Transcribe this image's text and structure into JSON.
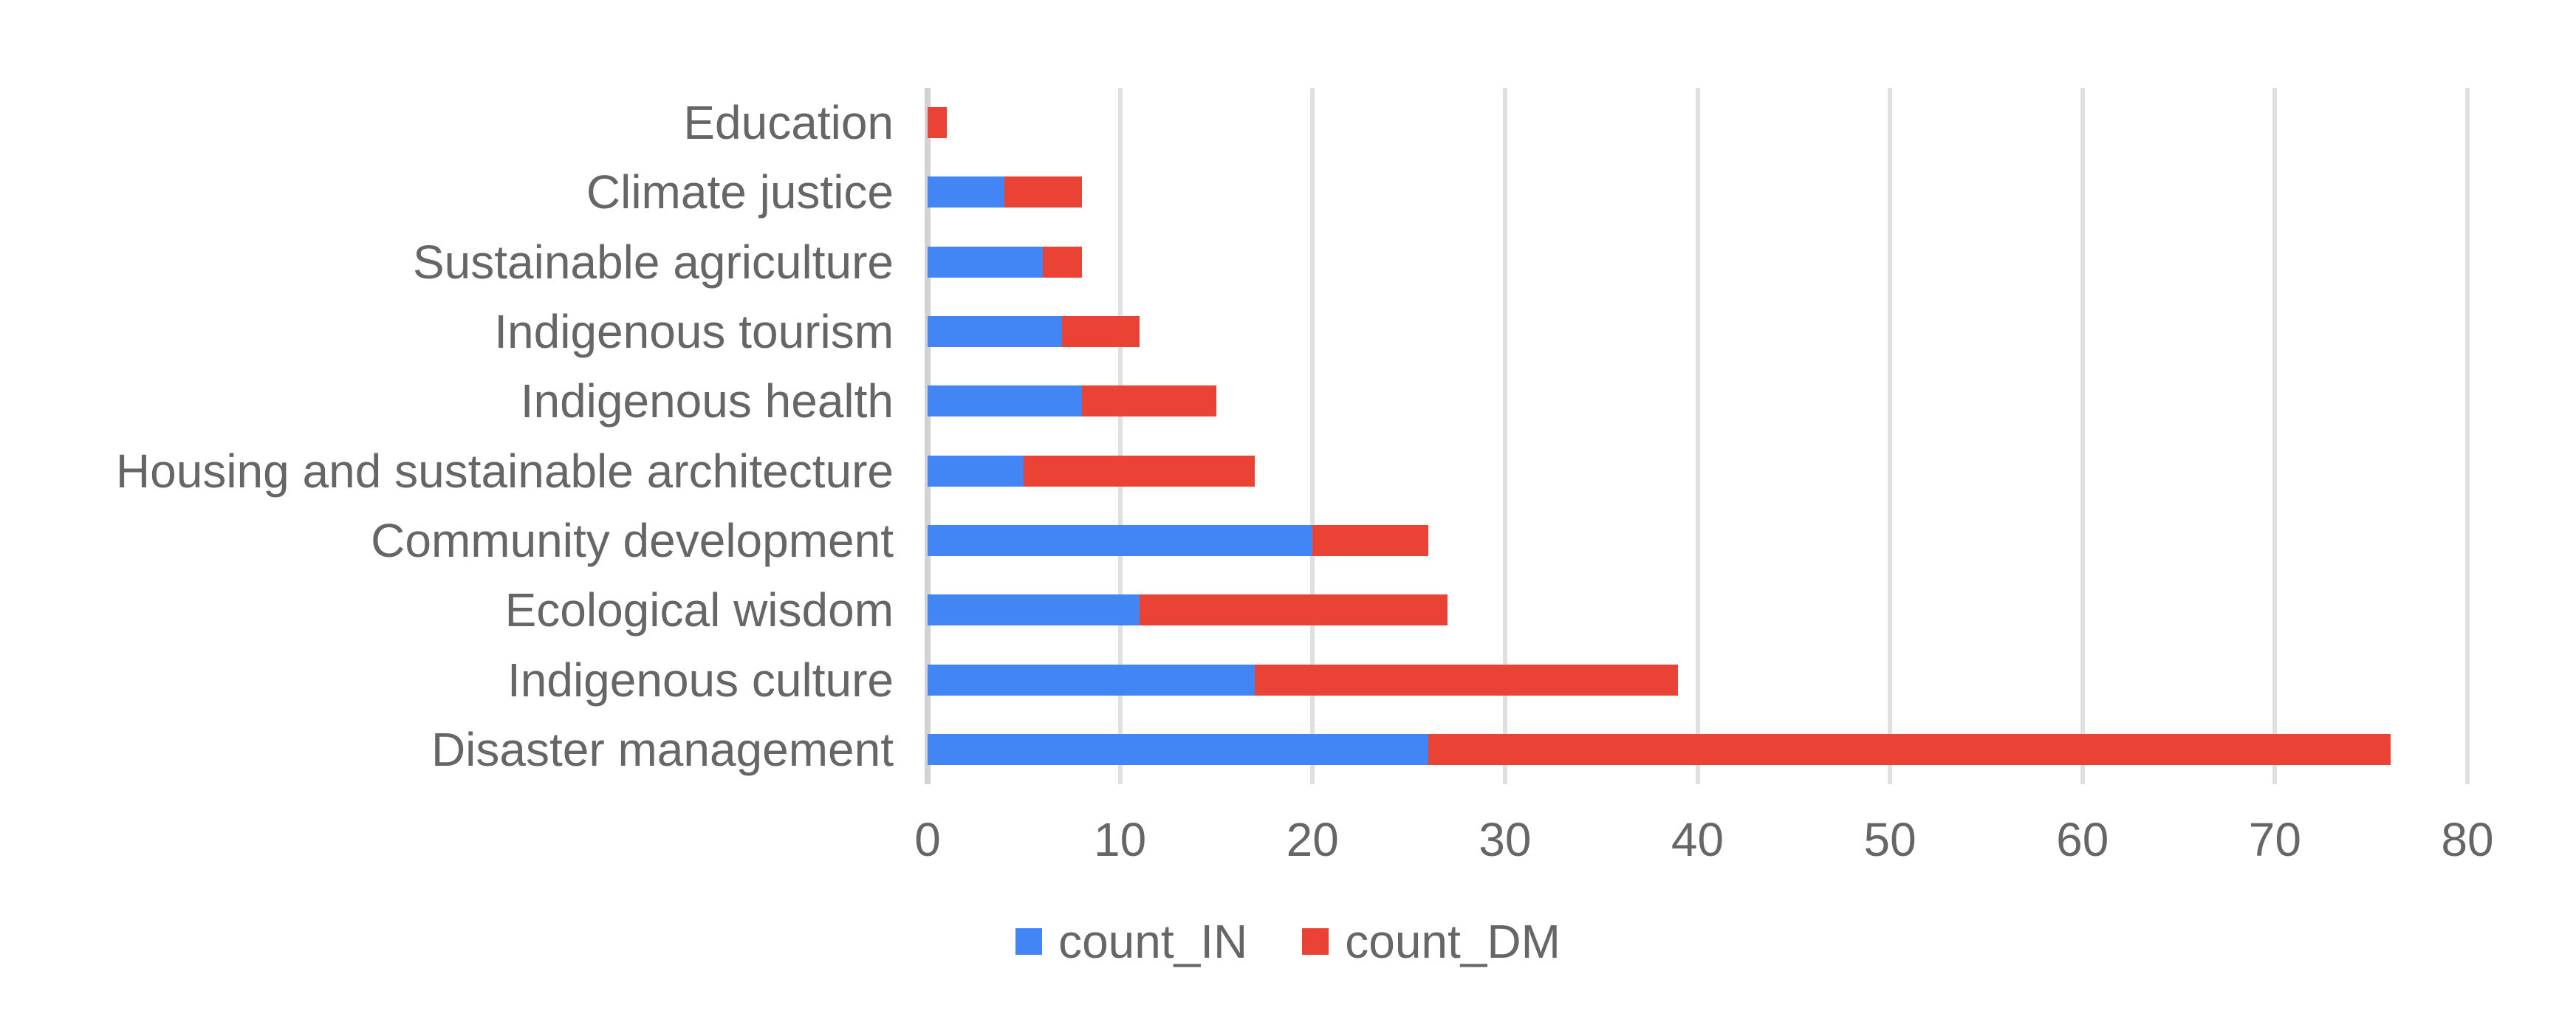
{
  "chart_data": {
    "type": "bar",
    "orientation": "horizontal",
    "stacked": true,
    "title": "",
    "xlabel": "",
    "ylabel": "",
    "categories": [
      "Education",
      "Climate justice",
      "Sustainable agriculture",
      "Indigenous tourism",
      "Indigenous health",
      "Housing and sustainable architecture",
      "Community development",
      "Ecological wisdom",
      "Indigenous culture",
      "Disaster management"
    ],
    "series": [
      {
        "name": "count_IN",
        "color": "#4285F4",
        "values": [
          0,
          4,
          6,
          7,
          8,
          5,
          20,
          11,
          17,
          26
        ]
      },
      {
        "name": "count_DM",
        "color": "#EA4335",
        "values": [
          1,
          4,
          2,
          4,
          7,
          12,
          6,
          16,
          22,
          50
        ]
      }
    ],
    "totals": [
      1,
      8,
      8,
      11,
      15,
      17,
      26,
      27,
      39,
      76
    ],
    "xlim": [
      0,
      80
    ],
    "x_ticks": [
      0,
      10,
      20,
      30,
      40,
      50,
      60,
      70,
      80
    ],
    "grid": "vertical-only",
    "legend_position": "bottom-center"
  },
  "colors": {
    "series_in": "#4285F4",
    "series_dm": "#EA4335",
    "axis_text": "#666666",
    "gridline": "#e0e0e0",
    "background": "#ffffff"
  },
  "legend": {
    "items": [
      {
        "label": "count_IN",
        "color": "#4285F4"
      },
      {
        "label": "count_DM",
        "color": "#EA4335"
      }
    ]
  }
}
